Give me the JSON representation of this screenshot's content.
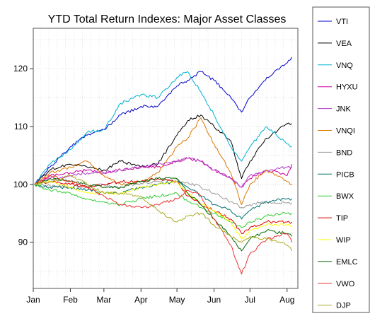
{
  "chart_data": {
    "type": "line",
    "title": "YTD Total Return Indexes: Major Asset Classes",
    "xlabel": "",
    "ylabel": "",
    "x_domain": [
      "2013-01-01",
      "2013-08-10"
    ],
    "ylim": [
      82,
      127
    ],
    "x_ticks": [
      {
        "label": "Jan",
        "date": "2013-01-01"
      },
      {
        "label": "Feb",
        "date": "2013-02-01"
      },
      {
        "label": "Mar",
        "date": "2013-03-01"
      },
      {
        "label": "Apr",
        "date": "2013-04-01"
      },
      {
        "label": "May",
        "date": "2013-05-01"
      },
      {
        "label": "Jun",
        "date": "2013-06-01"
      },
      {
        "label": "Jul",
        "date": "2013-07-01"
      },
      {
        "label": "Aug",
        "date": "2013-08-01"
      }
    ],
    "y_ticks": [
      90,
      100,
      110,
      120
    ],
    "grid": true,
    "legend_position": "right",
    "dates": [
      "2013-01-02",
      "2013-01-15",
      "2013-02-01",
      "2013-02-15",
      "2013-03-01",
      "2013-03-15",
      "2013-04-01",
      "2013-04-15",
      "2013-05-01",
      "2013-05-10",
      "2013-05-21",
      "2013-06-01",
      "2013-06-15",
      "2013-06-24",
      "2013-07-01",
      "2013-07-15",
      "2013-08-01",
      "2013-08-05"
    ],
    "series": [
      {
        "name": "VTI",
        "color": "#0000CD",
        "values": [
          100.0,
          103.0,
          106.5,
          108.5,
          109.5,
          112.0,
          113.5,
          113.5,
          117.0,
          118.0,
          119.5,
          118.0,
          115.0,
          112.5,
          115.0,
          118.5,
          121.0,
          122.0
        ]
      },
      {
        "name": "VEA",
        "color": "#000000",
        "values": [
          100.0,
          102.5,
          103.5,
          103.0,
          102.5,
          104.0,
          103.0,
          103.5,
          108.5,
          111.0,
          112.0,
          110.0,
          107.5,
          101.0,
          104.0,
          108.0,
          110.5,
          110.5
        ]
      },
      {
        "name": "VNQ",
        "color": "#00B2D2",
        "values": [
          100.0,
          103.5,
          106.0,
          109.0,
          109.5,
          114.0,
          115.5,
          115.0,
          118.5,
          119.5,
          116.0,
          112.0,
          106.5,
          104.0,
          106.5,
          110.0,
          107.0,
          106.5
        ]
      },
      {
        "name": "HYXU",
        "color": "#CC0099",
        "values": [
          100.0,
          101.5,
          102.0,
          102.5,
          102.0,
          102.5,
          103.0,
          103.0,
          104.0,
          104.5,
          104.0,
          102.5,
          101.0,
          99.5,
          101.0,
          102.5,
          101.5,
          103.5
        ]
      },
      {
        "name": "JNK",
        "color": "#B03CC8",
        "values": [
          100.0,
          101.0,
          101.5,
          102.0,
          102.0,
          102.5,
          103.0,
          103.5,
          104.0,
          104.5,
          104.0,
          102.5,
          101.0,
          99.5,
          101.5,
          102.5,
          103.0,
          103.0
        ]
      },
      {
        "name": "VNQI",
        "color": "#DD7700",
        "values": [
          100.0,
          102.0,
          103.0,
          104.0,
          101.5,
          100.0,
          100.5,
          102.0,
          106.5,
          108.0,
          111.5,
          107.0,
          102.0,
          96.5,
          100.0,
          102.5,
          100.5,
          100.0
        ]
      },
      {
        "name": "BND",
        "color": "#999999",
        "values": [
          100.0,
          99.8,
          99.5,
          99.7,
          99.9,
          99.6,
          100.2,
          100.5,
          100.8,
          100.3,
          99.5,
          98.5,
          97.0,
          96.0,
          96.5,
          97.0,
          96.8,
          96.8
        ]
      },
      {
        "name": "PICB",
        "color": "#007070",
        "values": [
          100.0,
          99.5,
          99.5,
          99.0,
          98.5,
          98.5,
          99.5,
          100.0,
          100.5,
          99.5,
          98.0,
          96.5,
          95.5,
          94.0,
          95.5,
          97.0,
          97.5,
          97.5
        ]
      },
      {
        "name": "BWX",
        "color": "#33CC33",
        "values": [
          100.0,
          99.0,
          98.5,
          97.5,
          97.0,
          96.5,
          97.5,
          98.0,
          98.5,
          97.0,
          96.0,
          95.0,
          93.5,
          92.5,
          93.5,
          94.5,
          95.0,
          95.0
        ]
      },
      {
        "name": "TIP",
        "color": "#DD0000",
        "values": [
          100.0,
          100.5,
          100.0,
          99.5,
          100.0,
          100.5,
          100.5,
          101.0,
          100.5,
          98.0,
          96.5,
          95.5,
          94.0,
          91.5,
          92.5,
          93.5,
          93.5,
          93.5
        ]
      },
      {
        "name": "WIP",
        "color": "#FFFF00",
        "values": [
          100.0,
          100.5,
          99.5,
          98.5,
          98.5,
          98.5,
          99.5,
          100.0,
          100.5,
          98.5,
          96.5,
          95.5,
          93.5,
          90.5,
          92.0,
          93.0,
          93.0,
          93.0
        ]
      },
      {
        "name": "EMLC",
        "color": "#006600",
        "values": [
          100.0,
          101.0,
          100.5,
          100.0,
          99.5,
          99.5,
          100.5,
          101.0,
          101.0,
          98.5,
          96.5,
          94.0,
          91.0,
          88.5,
          90.5,
          92.0,
          91.5,
          91.0
        ]
      },
      {
        "name": "VWO",
        "color": "#EE3333",
        "values": [
          100.0,
          101.5,
          100.5,
          99.5,
          98.0,
          96.5,
          96.0,
          96.5,
          97.5,
          99.0,
          98.0,
          94.0,
          89.5,
          84.5,
          88.0,
          90.5,
          91.5,
          90.0
        ]
      },
      {
        "name": "DJP",
        "color": "#AAAA22",
        "values": [
          100.0,
          100.5,
          101.5,
          100.0,
          98.5,
          98.5,
          98.0,
          95.5,
          93.5,
          94.5,
          95.0,
          93.0,
          91.0,
          90.0,
          91.0,
          90.5,
          89.5,
          88.5
        ]
      }
    ]
  }
}
